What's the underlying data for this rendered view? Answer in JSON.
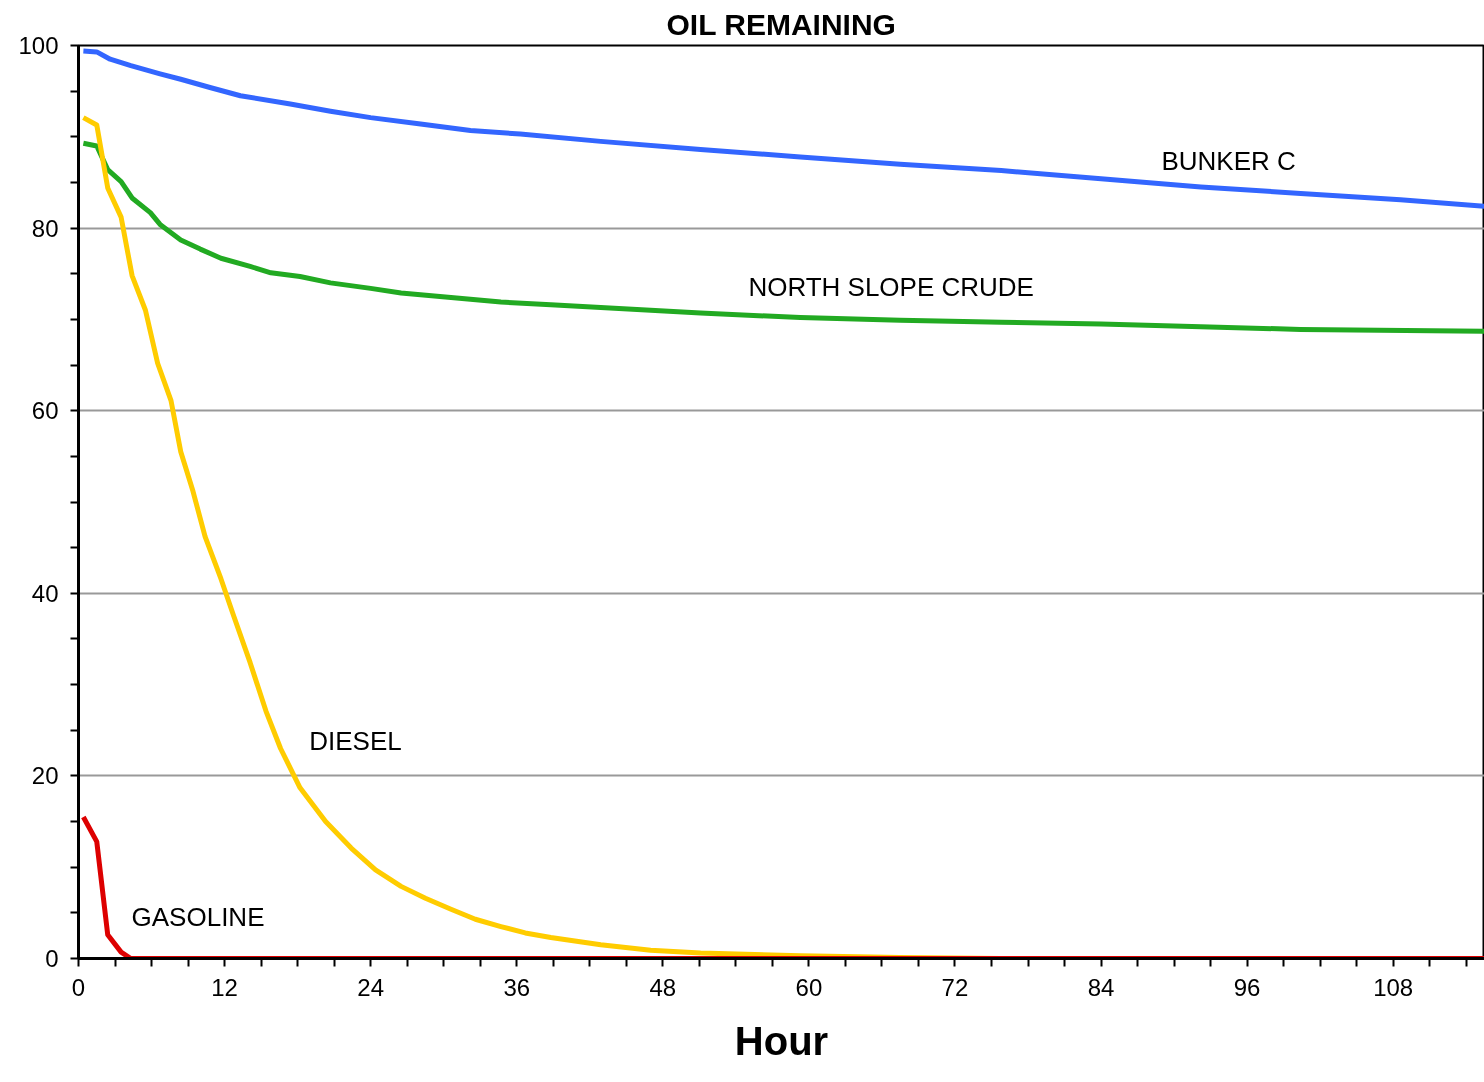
{
  "chart_data": {
    "type": "line",
    "title": "OIL REMAINING",
    "xlabel": "Hour",
    "xlim": [
      0,
      115.5
    ],
    "ylim": [
      0,
      100
    ],
    "xticks": [
      0,
      {
        "value": 3,
        "label": null
      },
      {
        "value": 6,
        "label": null
      },
      {
        "value": 9,
        "label": null
      },
      12,
      {
        "value": 15,
        "label": null
      },
      {
        "value": 18,
        "label": null
      },
      {
        "value": 21,
        "label": null
      },
      24,
      {
        "value": 27,
        "label": null
      },
      {
        "value": 30,
        "label": null
      },
      {
        "value": 33,
        "label": null
      },
      36,
      {
        "value": 39,
        "label": null
      },
      {
        "value": 42,
        "label": null
      },
      {
        "value": 45,
        "label": null
      },
      48,
      {
        "value": 51,
        "label": null
      },
      {
        "value": 54,
        "label": null
      },
      {
        "value": 57,
        "label": null
      },
      60,
      {
        "value": 63,
        "label": null
      },
      {
        "value": 66,
        "label": null
      },
      {
        "value": 69,
        "label": null
      },
      72,
      {
        "value": 75,
        "label": null
      },
      {
        "value": 78,
        "label": null
      },
      {
        "value": 81,
        "label": null
      },
      84,
      {
        "value": 87,
        "label": null
      },
      {
        "value": 90,
        "label": null
      },
      {
        "value": 93,
        "label": null
      },
      96,
      {
        "value": 99,
        "label": null
      },
      {
        "value": 102,
        "label": null
      },
      {
        "value": 105,
        "label": null
      },
      108,
      {
        "value": 111,
        "label": null
      },
      {
        "value": 114,
        "label": null
      }
    ],
    "yticks": [
      0,
      {
        "value": 5,
        "label": null
      },
      {
        "value": 10,
        "label": null
      },
      {
        "value": 15,
        "label": null
      },
      20,
      {
        "value": 25,
        "label": null
      },
      {
        "value": 30,
        "label": null
      },
      {
        "value": 35,
        "label": null
      },
      40,
      {
        "value": 45,
        "label": null
      },
      {
        "value": 50,
        "label": null
      },
      {
        "value": 55,
        "label": null
      },
      60,
      {
        "value": 65,
        "label": null
      },
      {
        "value": 70,
        "label": null
      },
      {
        "value": 75,
        "label": null
      },
      80,
      {
        "value": 85,
        "label": null
      },
      {
        "value": 90,
        "label": null
      },
      {
        "value": 95,
        "label": null
      },
      100
    ],
    "grid": "y",
    "marker": "none",
    "line_style": "solid",
    "series": [
      {
        "name": "BUNKER C",
        "color": "#3366ff",
        "x": [
          0.4,
          1.5,
          2.6,
          4.3,
          6.7,
          8.4,
          10.8,
          13.3,
          17.4,
          20.7,
          24.0,
          28.1,
          32.2,
          36.3,
          42.9,
          51.1,
          59.3,
          67.5,
          75.8,
          84.0,
          92.2,
          100.4,
          108.6,
          115.5
        ],
        "values": [
          99.4,
          99.3,
          98.5,
          97.8,
          96.9,
          96.3,
          95.4,
          94.5,
          93.6,
          92.8,
          92.1,
          91.4,
          90.7,
          90.3,
          89.5,
          88.6,
          87.8,
          87.0,
          86.3,
          85.4,
          84.5,
          83.8,
          83.1,
          82.4
        ]
      },
      {
        "name": "NORTH SLOPE CRUDE",
        "color": "#22aa22",
        "x": [
          0.4,
          1.5,
          2.4,
          3.5,
          4.4,
          5.9,
          6.7,
          8.4,
          10.0,
          11.7,
          14.1,
          15.8,
          18.2,
          20.7,
          24.0,
          26.5,
          30.6,
          34.7,
          38.8,
          42.9,
          51.1,
          59.3,
          67.5,
          75.8,
          84.0,
          92.2,
          100.4,
          115.5
        ],
        "values": [
          89.3,
          89.0,
          86.4,
          85.1,
          83.3,
          81.7,
          80.4,
          78.7,
          77.7,
          76.7,
          75.8,
          75.1,
          74.7,
          74.0,
          73.4,
          72.9,
          72.4,
          71.9,
          71.6,
          71.3,
          70.7,
          70.2,
          69.9,
          69.7,
          69.5,
          69.2,
          68.9,
          68.7
        ]
      },
      {
        "name": "DIESEL",
        "color": "#ffcc00",
        "x": [
          0.4,
          1.5,
          2.4,
          3.5,
          4.4,
          5.5,
          6.5,
          7.6,
          8.4,
          9.4,
          10.4,
          11.7,
          12.7,
          14.1,
          15.4,
          16.6,
          18.2,
          20.3,
          22.4,
          24.4,
          26.5,
          28.5,
          30.6,
          32.6,
          34.7,
          36.7,
          38.8,
          42.9,
          47.0,
          51.1,
          59.3,
          67.5,
          75.8,
          115.5
        ],
        "values": [
          92.1,
          91.3,
          84.4,
          81.2,
          74.8,
          71.0,
          65.2,
          61.1,
          55.5,
          51.2,
          46.2,
          41.6,
          37.7,
          32.4,
          27.1,
          23.0,
          18.7,
          15.0,
          12.1,
          9.7,
          7.9,
          6.6,
          5.4,
          4.3,
          3.5,
          2.8,
          2.3,
          1.5,
          0.9,
          0.6,
          0.3,
          0.1,
          0.0,
          0.0
        ]
      },
      {
        "name": "GASOLINE",
        "color": "#dd0000",
        "x": [
          0.4,
          1.5,
          2.4,
          3.5,
          4.3,
          115.5
        ],
        "values": [
          15.5,
          12.8,
          2.6,
          0.7,
          0.0,
          0.0
        ]
      }
    ]
  }
}
